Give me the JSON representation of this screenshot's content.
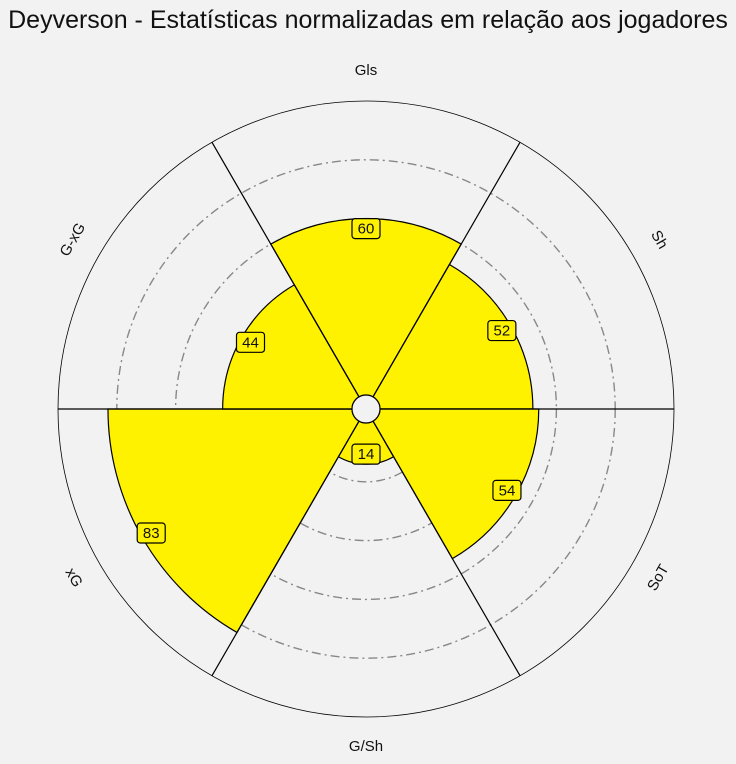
{
  "chart_data": {
    "type": "polar-bar",
    "title": "Deyverson - Estatísticas normalizadas em relação aos jogadores",
    "categories": [
      "Gls",
      "Sh",
      "SoT",
      "G/Sh",
      "xG",
      "G-xG"
    ],
    "values": [
      60,
      52,
      54,
      14,
      83,
      44
    ],
    "rlim": [
      0,
      100
    ],
    "grid_rings": [
      20,
      40,
      60,
      80
    ],
    "colors": {
      "bar_fill": "#fff200",
      "bar_edge": "#000000",
      "background": "#f2f2f2",
      "grid": "#888888",
      "label_box_fill": "#fff200"
    }
  }
}
